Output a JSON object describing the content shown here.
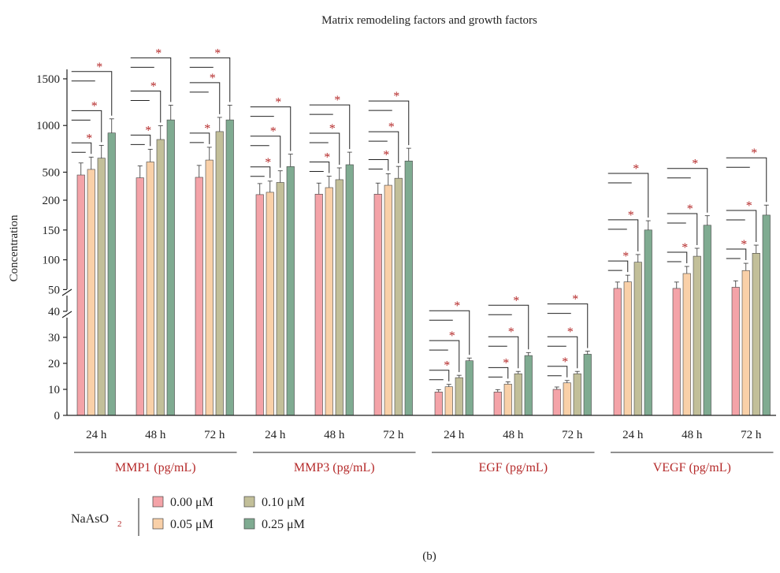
{
  "chart_data": {
    "type": "bar",
    "title": "Matrix remodeling factors and growth factors",
    "ylabel": "Concentration",
    "caption": "(b)",
    "y_ticks_upper": [
      "500",
      "1000",
      "1500"
    ],
    "y_ticks_mid": [
      "50",
      "100",
      "150",
      "200"
    ],
    "y_ticks_lower": [
      "0",
      "10",
      "20",
      "30",
      "40"
    ],
    "axis_segments": [
      {
        "range": [
          0,
          40
        ]
      },
      {
        "range": [
          40,
          200
        ]
      },
      {
        "range": [
          200,
          1700
        ]
      }
    ],
    "timepoints": [
      "24 h",
      "48 h",
      "72 h"
    ],
    "legend": {
      "title": "NaAsO",
      "title_sub": "2",
      "entries": [
        {
          "name": "0.00 μM",
          "color": "#f4a3a8"
        },
        {
          "name": "0.05 μM",
          "color": "#f9d0a8"
        },
        {
          "name": "0.10 μM",
          "color": "#c2bf99"
        },
        {
          "name": "0.25 μM",
          "color": "#7fab91"
        }
      ]
    },
    "significance_mark": "*",
    "groups": [
      {
        "name": "MMP1 (pg/mL)",
        "bars": [
          [
            470,
            530,
            650,
            920
          ],
          [
            440,
            610,
            850,
            1060
          ],
          [
            445,
            630,
            935,
            1060
          ]
        ]
      },
      {
        "name": "MMP3 (pg/mL)",
        "bars": [
          [
            260,
            285,
            390,
            560
          ],
          [
            265,
            335,
            420,
            580
          ],
          [
            265,
            360,
            435,
            620
          ]
        ]
      },
      {
        "name": "EGF (pg/mL)",
        "bars": [
          [
            9,
            11,
            14.5,
            21
          ],
          [
            9,
            12,
            16,
            23
          ],
          [
            10,
            12.5,
            16,
            23.5
          ]
        ]
      },
      {
        "name": "VEGF (pg/mL)",
        "bars": [
          [
            52,
            63,
            96,
            150
          ],
          [
            52,
            77,
            106,
            158
          ],
          [
            54,
            82,
            111,
            175
          ]
        ]
      }
    ],
    "colors": {
      "bar_edge": "#444444",
      "accent_red": "#b52a2a",
      "axis": "#222222"
    }
  }
}
